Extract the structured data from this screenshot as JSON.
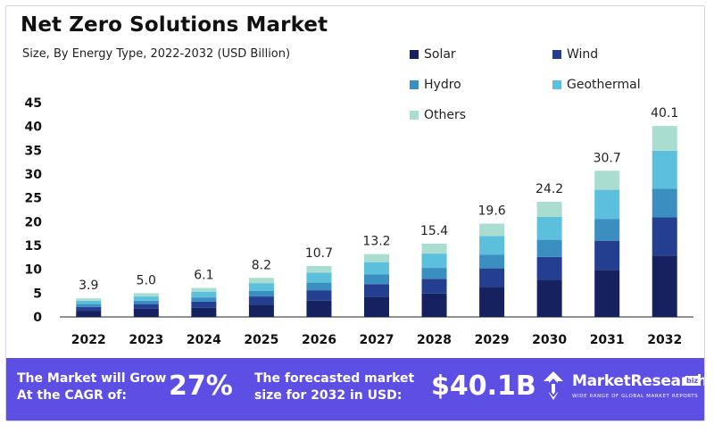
{
  "chart_data": {
    "type": "bar",
    "stacked": true,
    "title": "Net Zero Solutions Market",
    "subtitle": "Size, By Energy Type, 2022-2032 (USD Billion)",
    "categories": [
      "2022",
      "2023",
      "2024",
      "2025",
      "2026",
      "2027",
      "2028",
      "2029",
      "2030",
      "2031",
      "2032"
    ],
    "totals": [
      3.9,
      5.0,
      6.1,
      8.2,
      10.7,
      13.2,
      15.4,
      19.6,
      24.2,
      30.7,
      40.1
    ],
    "total_labels": [
      "3.9",
      "5.0",
      "6.1",
      "8.2",
      "10.7",
      "13.2",
      "15.4",
      "19.6",
      "24.2",
      "30.7",
      "40.1"
    ],
    "series": [
      {
        "name": "Solar",
        "color": "#16215f",
        "values": [
          1.3,
          1.7,
          1.9,
          2.6,
          3.4,
          4.2,
          4.9,
          6.3,
          7.8,
          9.9,
          12.9
        ]
      },
      {
        "name": "Wind",
        "color": "#243f8f",
        "values": [
          0.8,
          1.0,
          1.3,
          1.7,
          2.2,
          2.7,
          3.1,
          3.9,
          4.8,
          6.1,
          8.0
        ]
      },
      {
        "name": "Hydro",
        "color": "#3a8ec0",
        "values": [
          0.6,
          0.7,
          0.9,
          1.2,
          1.6,
          2.0,
          2.3,
          2.9,
          3.6,
          4.6,
          6.0
        ]
      },
      {
        "name": "Geothermal",
        "color": "#5cc0dc",
        "values": [
          0.7,
          0.9,
          1.2,
          1.6,
          2.1,
          2.6,
          3.0,
          3.9,
          4.8,
          6.1,
          8.0
        ]
      },
      {
        "name": "Others",
        "color": "#a8ddd0",
        "values": [
          0.5,
          0.7,
          0.8,
          1.1,
          1.4,
          1.7,
          2.1,
          2.6,
          3.2,
          4.0,
          5.2
        ]
      }
    ],
    "y_ticks": [
      "0",
      "5",
      "10",
      "15",
      "20",
      "25",
      "30",
      "35",
      "40",
      "45"
    ],
    "ylim": [
      0,
      45
    ],
    "xlabel": "",
    "ylabel": "",
    "grid": false,
    "legend_position": "top-right"
  },
  "footer": {
    "cagr_label_line1": "The Market will Grow",
    "cagr_label_line2": "At the CAGR of:",
    "cagr_value": "27%",
    "forecast_label_line1": "The forecasted market",
    "forecast_label_line2": "size for 2032 in USD:",
    "forecast_value": "$40.1B",
    "brand_name": "MarketResearch",
    "brand_badge": "biz",
    "brand_tagline": "WIDE RANGE OF GLOBAL MARKET REPORTS",
    "background_color": "#5d4fe3"
  }
}
